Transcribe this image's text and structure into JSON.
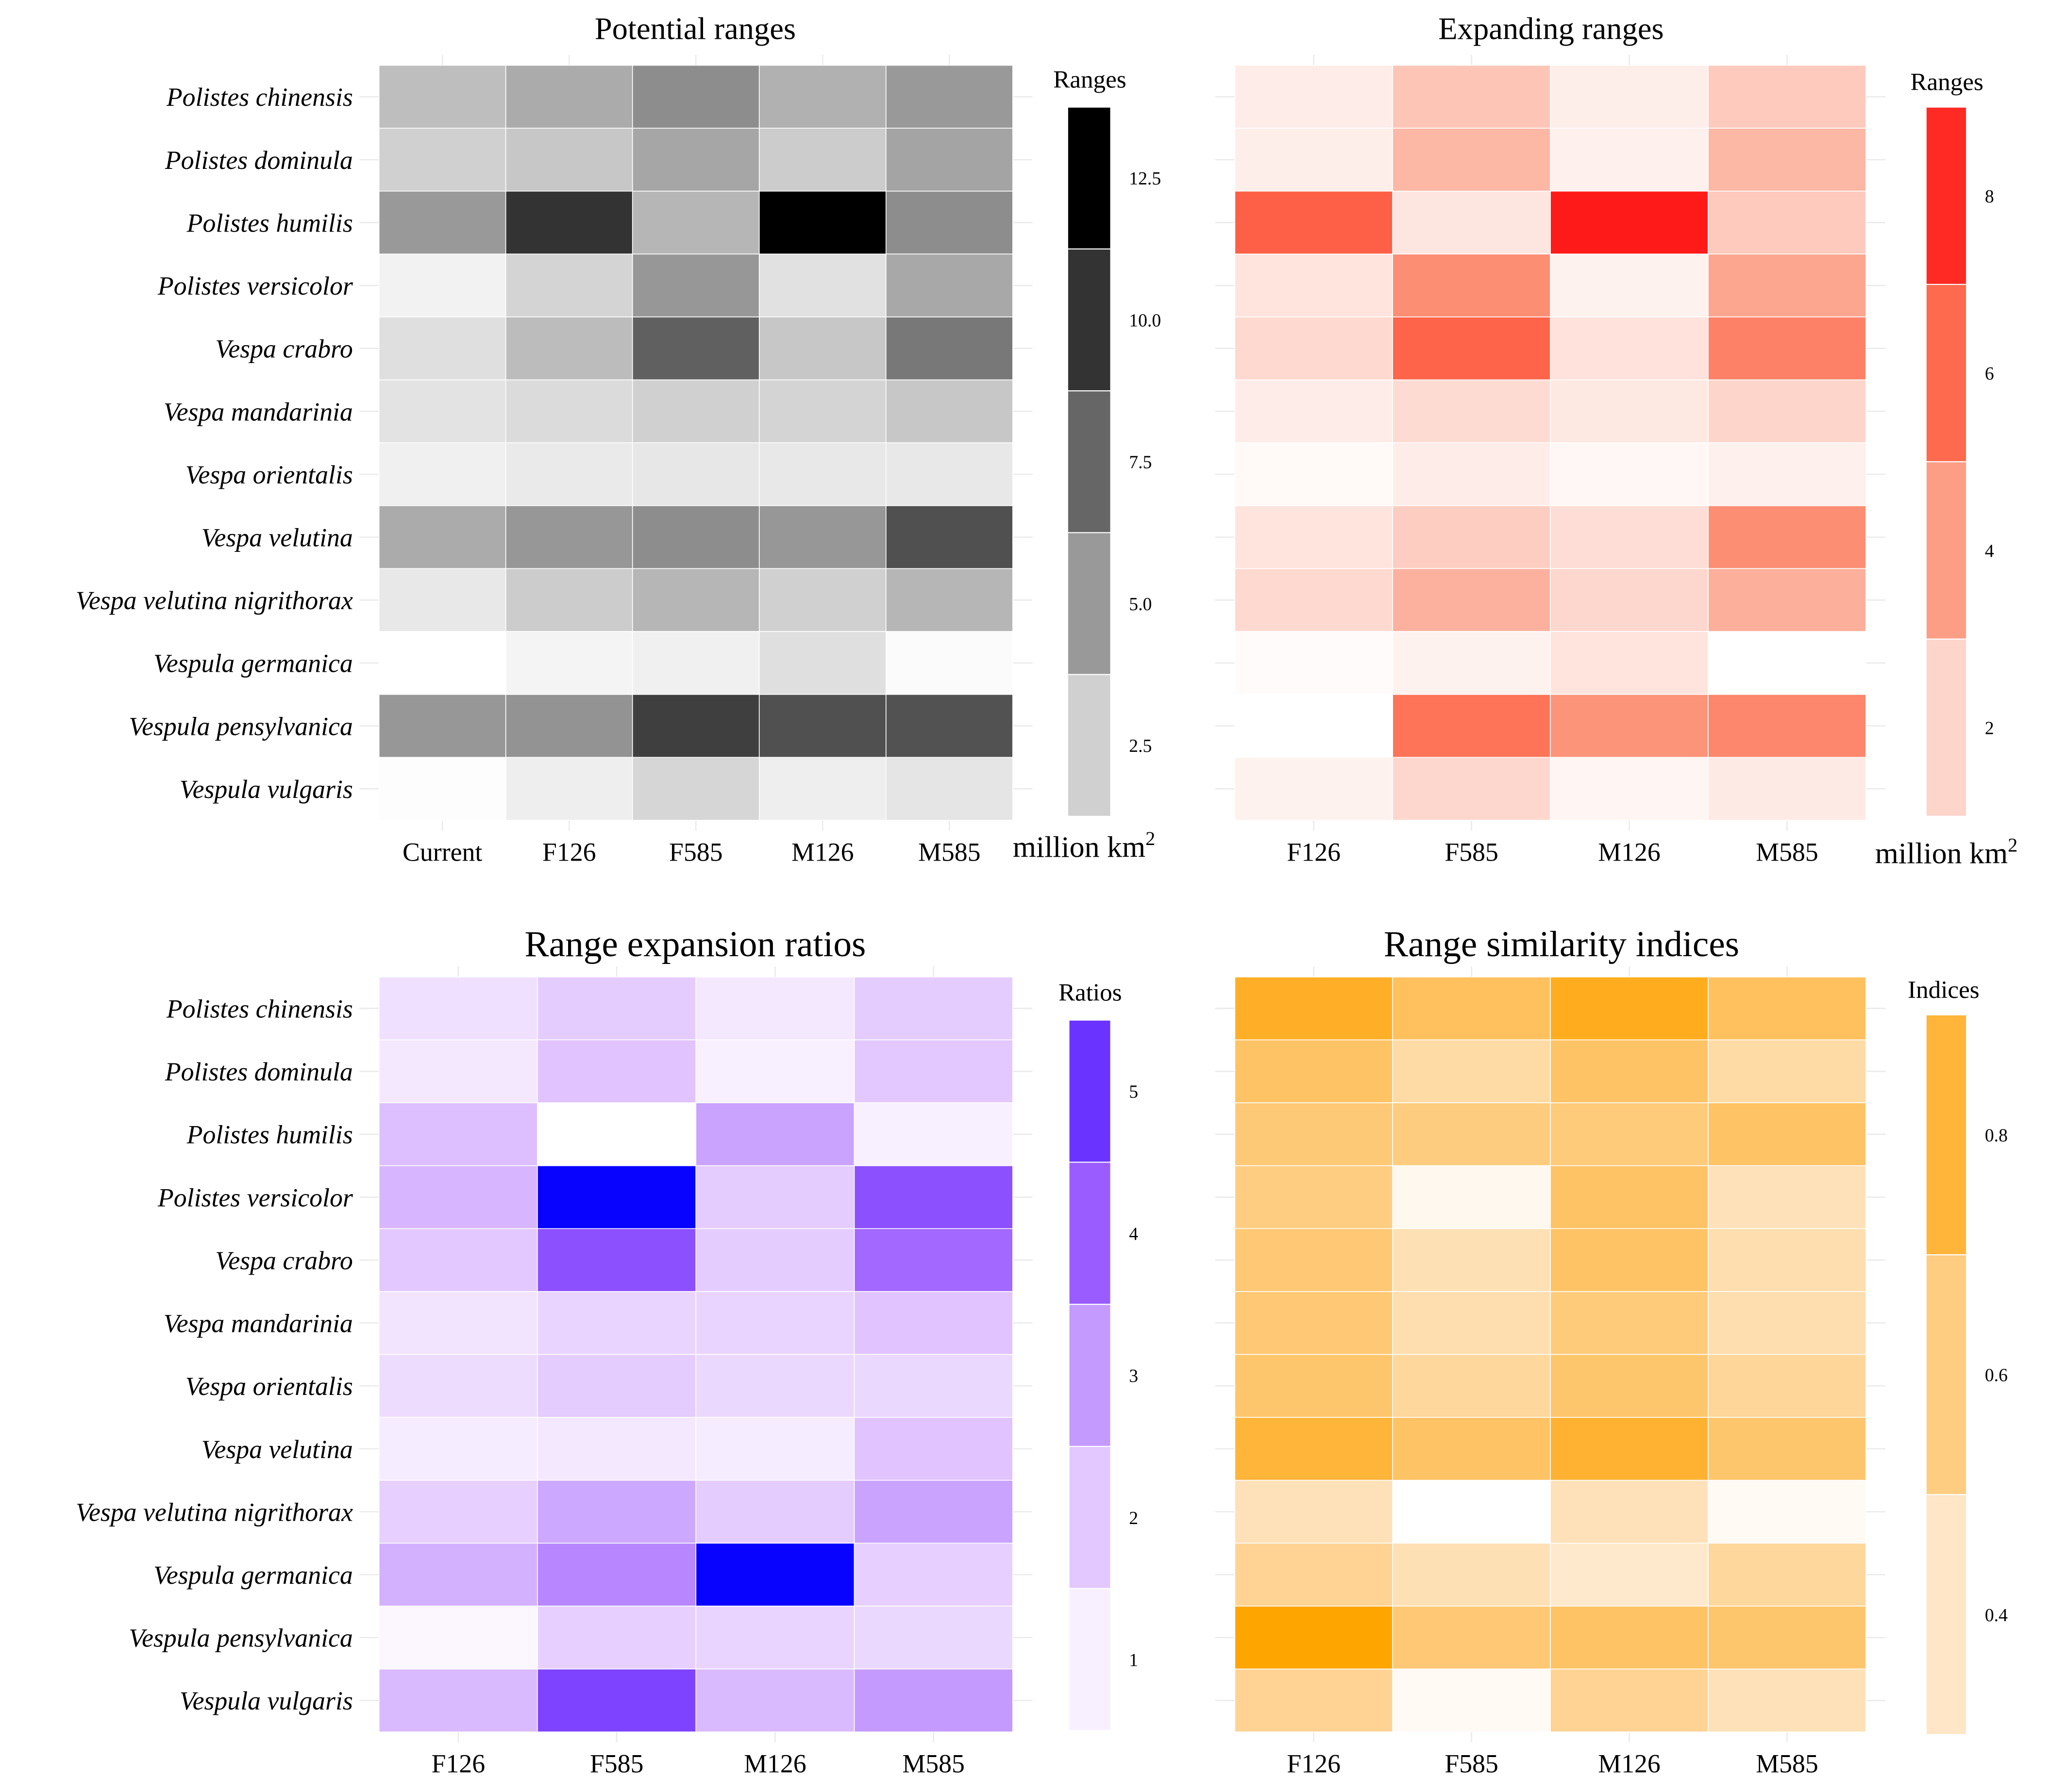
{
  "chart_data": [
    {
      "type": "heatmap",
      "title": "Potential ranges",
      "rows": [
        "Polistes chinensis",
        "Polistes dominula",
        "Polistes humilis",
        "Polistes versicolor",
        "Vespa crabro",
        "Vespa mandarinia",
        "Vespa orientalis",
        "Vespa velutina",
        "Vespa velutina  nigrithorax",
        "Vespula germanica",
        "Vespula pensylvanica",
        "Vespula vulgaris"
      ],
      "columns": [
        "Current",
        "F126",
        "F585",
        "M126",
        "M585"
      ],
      "values": [
        [
          3.3,
          4.2,
          5.6,
          3.9,
          5.0
        ],
        [
          2.5,
          2.9,
          4.4,
          2.7,
          4.5
        ],
        [
          5.0,
          10.0,
          3.7,
          13.5,
          5.6
        ],
        [
          0.7,
          2.3,
          5.1,
          1.6,
          4.3
        ],
        [
          1.7,
          3.4,
          7.8,
          2.9,
          6.6
        ],
        [
          1.5,
          1.9,
          2.5,
          2.3,
          2.9
        ],
        [
          0.8,
          1.1,
          1.3,
          1.2,
          1.2
        ],
        [
          4.2,
          5.1,
          5.6,
          5.1,
          8.6
        ],
        [
          1.2,
          2.7,
          3.7,
          2.5,
          3.7
        ],
        [
          0.0,
          0.6,
          0.8,
          1.7,
          0.2
        ],
        [
          5.1,
          5.3,
          9.4,
          8.6,
          8.5
        ],
        [
          0.1,
          0.9,
          2.2,
          0.9,
          1.4
        ]
      ],
      "legend": {
        "title": "Ranges",
        "unit": "million km",
        "unit_superscript": "2",
        "ticks": [
          "2.5",
          "5.0",
          "7.5",
          "10.0",
          "12.5"
        ],
        "tick_values": [
          2.5,
          5,
          7.5,
          10,
          12.5
        ],
        "bin_width": 2.5
      },
      "color_stops": [
        [
          0,
          "#ffffff"
        ],
        [
          2.5,
          "#d0d0d0"
        ],
        [
          5,
          "#999999"
        ],
        [
          7.5,
          "#666666"
        ],
        [
          10,
          "#333333"
        ],
        [
          12.5,
          "#000000"
        ]
      ]
    },
    {
      "type": "heatmap",
      "title": "Expanding ranges",
      "rows": [
        "Polistes chinensis",
        "Polistes dominula",
        "Polistes humilis",
        "Polistes versicolor",
        "Vespa crabro",
        "Vespa mandarinia",
        "Vespa orientalis",
        "Vespa velutina",
        "Vespa velutina  nigrithorax",
        "Vespula germanica",
        "Vespula pensylvanica",
        "Vespula vulgaris"
      ],
      "columns": [
        "F126",
        "F585",
        "M126",
        "M585"
      ],
      "values": [
        [
          0.9,
          2.6,
          0.8,
          2.4
        ],
        [
          0.8,
          3.1,
          0.7,
          3.1
        ],
        [
          6.3,
          1.2,
          8.8,
          2.4
        ],
        [
          1.3,
          4.6,
          0.6,
          3.7
        ],
        [
          1.8,
          6.2,
          1.4,
          5.1
        ],
        [
          0.9,
          1.7,
          1.1,
          2.0
        ],
        [
          0.3,
          0.9,
          0.4,
          0.7
        ],
        [
          1.3,
          2.3,
          1.6,
          4.6
        ],
        [
          1.8,
          3.3,
          1.9,
          3.4
        ],
        [
          0.2,
          0.6,
          1.3,
          0.0
        ],
        [
          0.0,
          5.6,
          4.4,
          4.9
        ],
        [
          0.6,
          1.9,
          0.5,
          1.0
        ]
      ],
      "legend": {
        "title": "Ranges",
        "unit": "million km",
        "unit_superscript": "2",
        "ticks": [
          "2",
          "4",
          "6",
          "8"
        ],
        "tick_values": [
          2,
          4,
          6,
          8
        ],
        "bin_width": 2
      },
      "color_stops": [
        [
          0,
          "#ffffff"
        ],
        [
          2,
          "#fdd5cb"
        ],
        [
          4,
          "#fc9e85"
        ],
        [
          6,
          "#fd6a4d"
        ],
        [
          8.5,
          "#ff1a1a"
        ]
      ]
    },
    {
      "type": "heatmap",
      "title": "Range expansion ratios",
      "rows": [
        "Polistes chinensis",
        "Polistes dominula",
        "Polistes humilis",
        "Polistes versicolor",
        "Vespa crabro",
        "Vespa mandarinia",
        "Vespa orientalis",
        "Vespa velutina",
        "Vespa velutina  nigrithorax",
        "Vespula germanica",
        "Vespula pensylvanica",
        "Vespula vulgaris"
      ],
      "columns": [
        "F126",
        "F585",
        "M126",
        "M585"
      ],
      "values": [
        [
          1.4,
          1.9,
          1.2,
          1.9
        ],
        [
          1.2,
          2.1,
          1.0,
          2.0
        ],
        [
          2.2,
          0.5,
          2.8,
          1.0
        ],
        [
          2.4,
          6.4,
          1.9,
          4.3
        ],
        [
          2.0,
          4.3,
          1.9,
          3.8
        ],
        [
          1.3,
          1.7,
          1.7,
          2.1
        ],
        [
          1.5,
          1.9,
          1.6,
          1.6
        ],
        [
          1.1,
          1.2,
          1.1,
          2.1
        ],
        [
          1.8,
          2.7,
          1.9,
          2.8
        ],
        [
          2.5,
          3.3,
          6.4,
          1.8
        ],
        [
          0.8,
          1.8,
          1.7,
          1.6
        ],
        [
          2.3,
          4.6,
          2.3,
          3.0
        ]
      ],
      "legend": {
        "title": "Ratios",
        "ticks": [
          "1",
          "2",
          "3",
          "4",
          "5"
        ],
        "tick_values": [
          1,
          2,
          3,
          4,
          5
        ],
        "bin_width": 1
      },
      "color_stops": [
        [
          0.5,
          "#ffffff"
        ],
        [
          1,
          "#f8f0ff"
        ],
        [
          2,
          "#e3c8ff"
        ],
        [
          3,
          "#c49aff"
        ],
        [
          4,
          "#9b5cff"
        ],
        [
          5,
          "#6a33ff"
        ],
        [
          6.5,
          "#0000ff"
        ]
      ]
    },
    {
      "type": "heatmap",
      "title": "Range similarity indices",
      "rows": [
        "Polistes chinensis",
        "Polistes dominula",
        "Polistes humilis",
        "Polistes versicolor",
        "Vespa crabro",
        "Vespa mandarinia",
        "Vespa orientalis",
        "Vespa velutina",
        "Vespa velutina  nigrithorax",
        "Vespula germanica",
        "Vespula pensylvanica",
        "Vespula vulgaris"
      ],
      "columns": [
        "F126",
        "F585",
        "M126",
        "M585"
      ],
      "values": [
        [
          0.85,
          0.7,
          0.87,
          0.7
        ],
        [
          0.68,
          0.5,
          0.68,
          0.5
        ],
        [
          0.63,
          0.61,
          0.62,
          0.68
        ],
        [
          0.6,
          0.33,
          0.68,
          0.44
        ],
        [
          0.64,
          0.45,
          0.68,
          0.47
        ],
        [
          0.64,
          0.47,
          0.62,
          0.47
        ],
        [
          0.66,
          0.52,
          0.66,
          0.53
        ],
        [
          0.8,
          0.68,
          0.82,
          0.66
        ],
        [
          0.44,
          0.3,
          0.44,
          0.32
        ],
        [
          0.55,
          0.45,
          0.39,
          0.52
        ],
        [
          0.95,
          0.64,
          0.68,
          0.66
        ],
        [
          0.55,
          0.32,
          0.55,
          0.44
        ]
      ],
      "legend": {
        "title": "Indices",
        "ticks": [
          "0.4",
          "0.6",
          "0.8"
        ],
        "tick_values": [
          0.4,
          0.6,
          0.8
        ],
        "bin_width": 0.2
      },
      "color_stops": [
        [
          0.3,
          "#ffffff"
        ],
        [
          0.4,
          "#fee6c6"
        ],
        [
          0.6,
          "#fecd82"
        ],
        [
          0.8,
          "#ffb43a"
        ],
        [
          0.95,
          "#ffa500"
        ]
      ]
    }
  ]
}
